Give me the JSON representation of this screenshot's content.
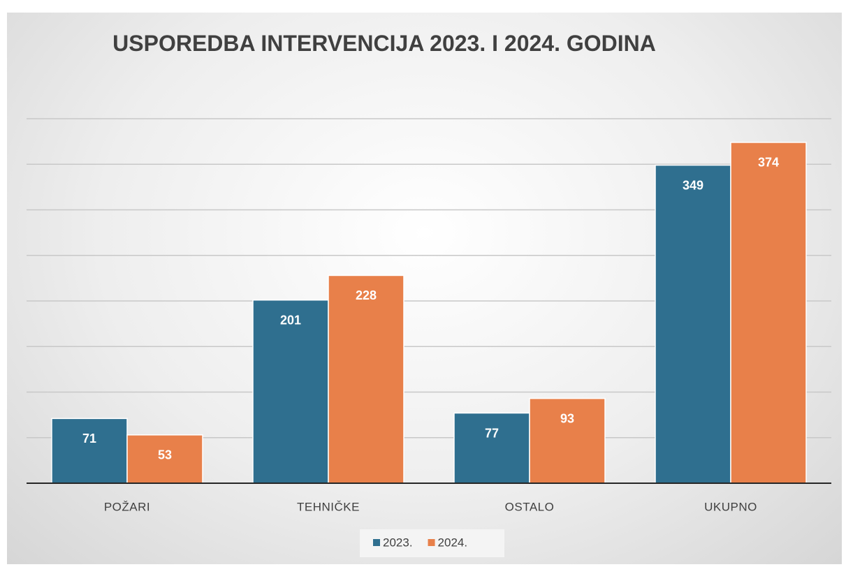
{
  "chart_data": {
    "type": "bar",
    "title": "USPOREDBA INTERVENCIJA 2023. I 2024. GODINA",
    "categories": [
      "POŽARI",
      "TEHNIČKE",
      "OSTALO",
      "UKUPNO"
    ],
    "series": [
      {
        "name": "2023.",
        "color": "#2f6f8f",
        "values": [
          71,
          201,
          77,
          349
        ]
      },
      {
        "name": "2024.",
        "color": "#e8804a",
        "values": [
          53,
          228,
          93,
          374
        ]
      }
    ],
    "ylim": [
      0,
      400
    ],
    "yticks": [
      0,
      50,
      100,
      150,
      200,
      250,
      300,
      350,
      400
    ],
    "grid": true,
    "legend": "bottom"
  }
}
